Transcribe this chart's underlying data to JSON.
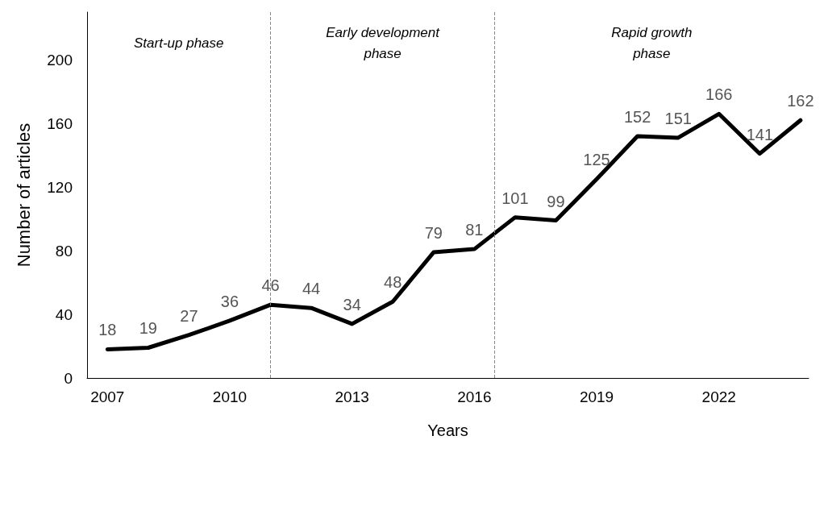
{
  "chart_data": {
    "type": "line",
    "xlabel": "Years",
    "ylabel": "Number of articles",
    "x": [
      2007,
      2008,
      2009,
      2010,
      2011,
      2012,
      2013,
      2014,
      2015,
      2016,
      2017,
      2018,
      2019,
      2020,
      2021,
      2022,
      2023,
      2024
    ],
    "series": [
      {
        "color": "#000000",
        "values": [
          18,
          19,
          27,
          36,
          46,
          44,
          34,
          48,
          79,
          81,
          101,
          99,
          125,
          152,
          151,
          166,
          141,
          162
        ]
      }
    ],
    "xlim": [
      2006.5,
      2024.2
    ],
    "xticks": [
      2007,
      2010,
      2013,
      2016,
      2019,
      2022
    ],
    "ylim": [
      0,
      230
    ],
    "yticks": [
      0,
      40,
      80,
      120,
      160,
      200
    ],
    "grid": false,
    "marker": "none",
    "line_style": "solid",
    "data_labels": true,
    "ref_lines": [
      {
        "axis": "x",
        "value": 2011,
        "label": null,
        "line_style": "dashed",
        "color": "#888888"
      },
      {
        "axis": "x",
        "value": 2016.5,
        "label": null,
        "line_style": "dashed",
        "color": "#888888"
      }
    ],
    "annotations": [
      "Start-up phase",
      "Early development\nphase",
      "Rapid growth\nphase"
    ]
  }
}
